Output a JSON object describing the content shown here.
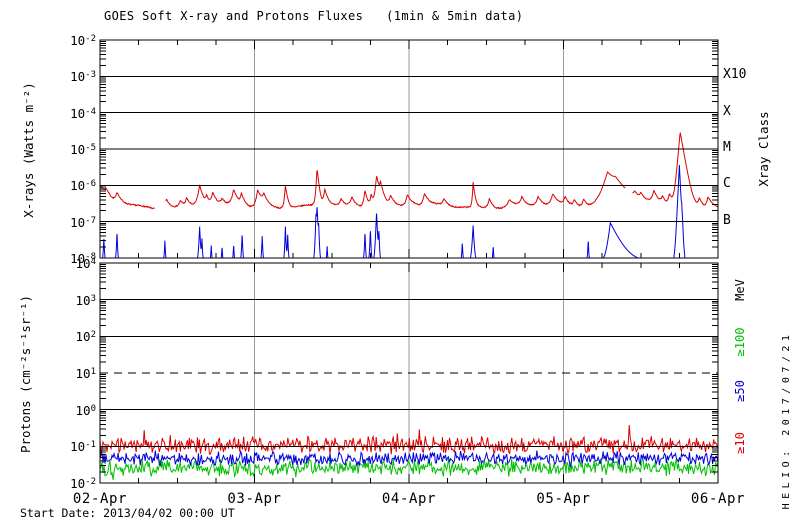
{
  "title": "GOES Soft X-ray and Protons Fluxes   (1min & 5min data)",
  "footer": {
    "start_date": "Start Date: 2013/04/02 00:00 UT",
    "credit": "HELIO: 2017/07/21"
  },
  "colors": {
    "red": "#dd0000",
    "blue": "#0000dd",
    "green": "#00c000",
    "axis": "#000000",
    "day_gridline": "#9a9a9a",
    "background": "#ffffff"
  },
  "chart_data": [
    {
      "panel": "xray",
      "type": "line",
      "ylabel": "X-rays (Watts m⁻²)",
      "ylim": [
        1e-08,
        0.01
      ],
      "yticks_exp": [
        -2,
        -3,
        -4,
        -5,
        -6,
        -7,
        -8
      ],
      "right_axis_title": "Xray Class",
      "class_labels": [
        {
          "text": "X10",
          "exp": -3
        },
        {
          "text": "X",
          "exp": -4
        },
        {
          "text": "M",
          "exp": -5
        },
        {
          "text": "C",
          "exp": -6
        },
        {
          "text": "B",
          "exp": -7
        }
      ],
      "x_range_days": [
        0,
        4
      ],
      "x_ticklabels": [
        "02-Apr",
        "03-Apr",
        "04-Apr",
        "05-Apr",
        "06-Apr"
      ],
      "x_minor_tick_hours": 6,
      "grid": "decade-lines-and-day-lines",
      "series": [
        {
          "name": "xray-long",
          "color": "#dd0000",
          "baseline": 2.6e-07,
          "initial_decay": {
            "amp": 7e-07,
            "tau": 0.05
          },
          "flares": [
            [
              0.04,
              2.5e-07,
              0.01,
              0.02
            ],
            [
              0.11,
              3e-07,
              0.01,
              0.025
            ],
            [
              0.43,
              2e-07,
              0.01,
              0.02
            ],
            [
              0.52,
              1.2e-07,
              0.01,
              0.02
            ],
            [
              0.56,
              1.8e-07,
              0.008,
              0.02
            ],
            [
              0.645,
              7.5e-07,
              0.012,
              0.02
            ],
            [
              0.69,
              2e-07,
              0.008,
              0.015
            ],
            [
              0.73,
              3.5e-07,
              0.01,
              0.02
            ],
            [
              0.79,
              1.2e-07,
              0.01,
              0.02
            ],
            [
              0.865,
              5e-07,
              0.012,
              0.025
            ],
            [
              0.915,
              3e-07,
              0.008,
              0.02
            ],
            [
              1.02,
              5e-07,
              0.01,
              0.03
            ],
            [
              1.06,
              2.5e-07,
              0.008,
              0.02
            ],
            [
              1.2,
              7.5e-07,
              0.006,
              0.012
            ],
            [
              1.405,
              2.7e-06,
              0.005,
              0.01
            ],
            [
              1.455,
              5e-07,
              0.008,
              0.02
            ],
            [
              1.56,
              1.5e-07,
              0.01,
              0.02
            ],
            [
              1.63,
              2e-07,
              0.01,
              0.02
            ],
            [
              1.715,
              5e-07,
              0.008,
              0.015
            ],
            [
              1.755,
              3e-07,
              0.008,
              0.015
            ],
            [
              1.79,
              1.6e-06,
              0.008,
              0.018
            ],
            [
              1.815,
              7e-07,
              0.006,
              0.02
            ],
            [
              1.88,
              2.5e-07,
              0.01,
              0.025
            ],
            [
              1.99,
              3e-07,
              0.012,
              0.03
            ],
            [
              2.1,
              3e-07,
              0.01,
              0.025
            ],
            [
              2.225,
              1.5e-07,
              0.01,
              0.02
            ],
            [
              2.415,
              9.5e-07,
              0.004,
              0.01
            ],
            [
              2.52,
              2e-07,
              0.01,
              0.02
            ],
            [
              2.65,
              1.5e-07,
              0.015,
              0.03
            ],
            [
              2.73,
              2e-07,
              0.01,
              0.02
            ],
            [
              2.835,
              2.2e-07,
              0.012,
              0.025
            ],
            [
              2.93,
              3e-07,
              0.012,
              0.03
            ],
            [
              3.01,
              2e-07,
              0.01,
              0.02
            ],
            [
              3.07,
              1.5e-07,
              0.01,
              0.02
            ],
            [
              3.13,
              1.8e-07,
              0.01,
              0.02
            ],
            [
              3.285,
              1.8e-06,
              0.025,
              0.055
            ],
            [
              3.335,
              8e-07,
              0.05,
              0.08
            ],
            [
              3.46,
              2e-07,
              0.01,
              0.02
            ],
            [
              3.5,
              2e-07,
              0.01,
              0.02
            ],
            [
              3.585,
              4e-07,
              0.012,
              0.025
            ],
            [
              3.64,
              2e-07,
              0.01,
              0.02
            ],
            [
              3.685,
              3e-07,
              0.008,
              0.02
            ],
            [
              3.755,
              2.9e-05,
              0.009,
              0.018
            ],
            [
              3.88,
              2e-07,
              0.01,
              0.02
            ],
            [
              3.935,
              2.5e-07,
              0.01,
              0.03
            ]
          ],
          "gaps": [
            [
              0.355,
              0.425
            ],
            [
              3.4,
              3.445
            ]
          ]
        },
        {
          "name": "xray-short",
          "color": "#0000dd",
          "floor": 8e-09,
          "spikes": [
            [
              0.025,
              3e-08,
              0.003
            ],
            [
              0.11,
              4.5e-08,
              0.003
            ],
            [
              0.42,
              2.2e-08,
              0.003
            ],
            [
              0.645,
              6.5e-08,
              0.004
            ],
            [
              0.66,
              2.5e-08,
              0.003
            ],
            [
              0.72,
              1.4e-08,
              0.003
            ],
            [
              0.79,
              1.3e-08,
              0.003
            ],
            [
              0.865,
              1.6e-08,
              0.003
            ],
            [
              0.92,
              4e-08,
              0.003
            ],
            [
              1.05,
              3.2e-08,
              0.003
            ],
            [
              1.2,
              6.5e-08,
              0.003
            ],
            [
              1.215,
              3.5e-08,
              0.003
            ],
            [
              1.398,
              1.1e-07,
              0.003
            ],
            [
              1.405,
              2.6e-07,
              0.004
            ],
            [
              1.415,
              7e-08,
              0.003
            ],
            [
              1.47,
              1.3e-08,
              0.003
            ],
            [
              1.715,
              4.5e-08,
              0.003
            ],
            [
              1.75,
              5.5e-08,
              0.003
            ],
            [
              1.79,
              1.8e-07,
              0.004
            ],
            [
              1.805,
              5e-08,
              0.003
            ],
            [
              2.345,
              2e-08,
              0.003
            ],
            [
              2.415,
              7e-08,
              0.005
            ],
            [
              2.545,
              1.4e-08,
              0.003
            ],
            [
              3.16,
              2.4e-08,
              0.003
            ],
            [
              3.75,
              3.6e-06,
              0.005
            ],
            [
              3.765,
              1.5e-07,
              0.003
            ],
            [
              3.77,
              4e-08,
              0.003
            ]
          ],
          "humps": [
            [
              3.303,
              8.5e-08,
              0.012,
              0.048
            ]
          ]
        }
      ]
    },
    {
      "panel": "protons",
      "type": "line",
      "ylabel": "Protons (cm⁻²s⁻¹sr⁻¹)",
      "ylim": [
        0.01,
        10000.0
      ],
      "yticks_exp": [
        4,
        3,
        2,
        1,
        0,
        -1,
        -2
      ],
      "right_axis_title": "MeV",
      "threshold": {
        "exp": 1,
        "style": "dashed"
      },
      "mev_labels": [
        {
          "text": "≥100",
          "color": "#00c000",
          "y_log": 1.85
        },
        {
          "text": "≥50",
          "color": "#0000dd",
          "y_log": 0.5
        },
        {
          "text": "≥10",
          "color": "#dd0000",
          "y_log": -0.9
        }
      ],
      "series": [
        {
          "name": "protons-ge100",
          "color": "#00c000",
          "center_log": -1.58,
          "spread": 0.27,
          "dip_prob": 0.05,
          "dip": 0.15
        },
        {
          "name": "protons-ge50",
          "color": "#0000dd",
          "center_log": -1.33,
          "spread": 0.22,
          "dip_prob": 0.0,
          "dip": 0
        },
        {
          "name": "protons-ge10",
          "color": "#dd0000",
          "center_log": -0.97,
          "spread": 0.27,
          "spike_prob": 0.02,
          "spike": 0.32
        }
      ]
    }
  ]
}
